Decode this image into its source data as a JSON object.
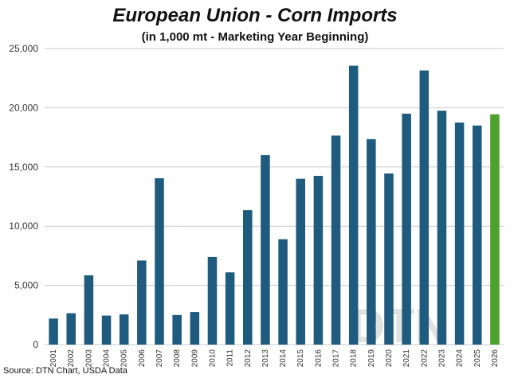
{
  "chart_data": {
    "type": "bar",
    "title": "European Union - Corn Imports",
    "subtitle": "(in 1,000 mt - Marketing Year Beginning)",
    "source": "Source: DTN Chart, USDA Data",
    "watermark": "DTN",
    "categories": [
      "2001",
      "2002",
      "2003",
      "2004",
      "2005",
      "2006",
      "2007",
      "2008",
      "2009",
      "2010",
      "2011",
      "2012",
      "2013",
      "2014",
      "2015",
      "2016",
      "2017",
      "2018",
      "2019",
      "2020",
      "2021",
      "2022",
      "2023",
      "2024",
      "2025",
      "2026"
    ],
    "values": [
      2200,
      2650,
      5850,
      2450,
      2550,
      7100,
      14050,
      2500,
      2750,
      7400,
      6100,
      11350,
      16000,
      8900,
      14000,
      14250,
      17650,
      23550,
      17350,
      14450,
      19500,
      23150,
      19750,
      18750,
      18500,
      19450
    ],
    "highlight_index": 25,
    "colors": {
      "bar": "#1e5b7e",
      "highlight": "#4fa12e",
      "grid": "#c8c8c8"
    },
    "ylim": [
      0,
      25000
    ],
    "yticks": [
      "0",
      "5,000",
      "10,000",
      "15,000",
      "20,000",
      "25,000"
    ],
    "grid": true
  }
}
